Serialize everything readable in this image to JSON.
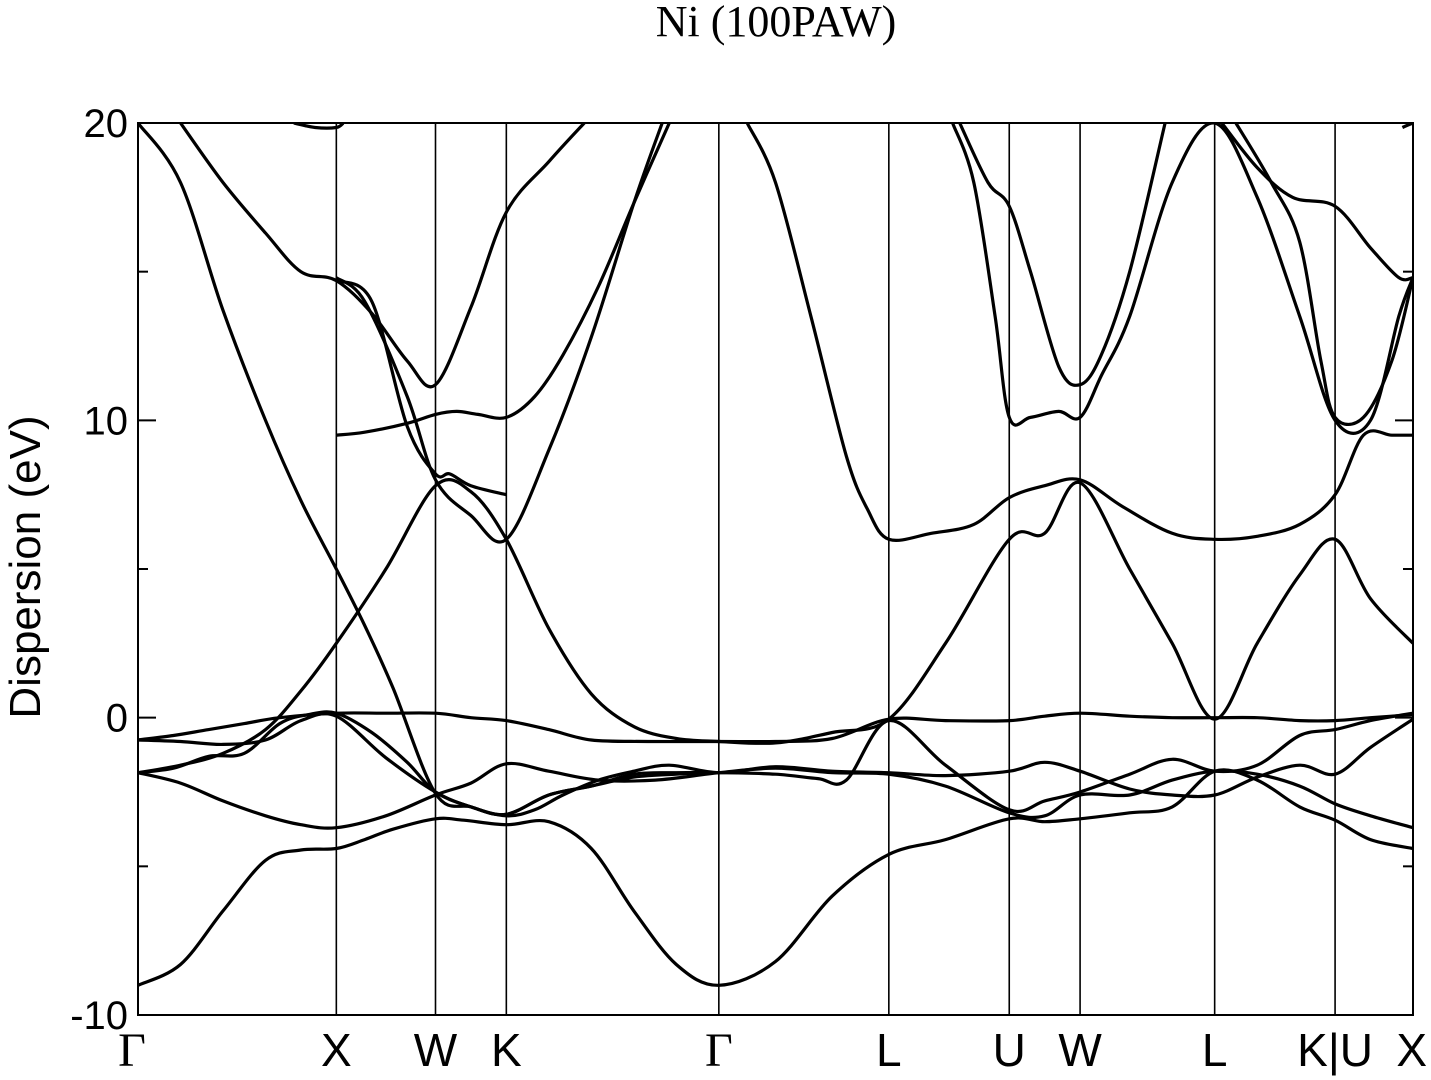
{
  "chart_data": {
    "type": "line",
    "title": "Ni (100PAW)",
    "ylabel": "Dispersion (eV)",
    "xlabel": "",
    "ylim": [
      -10,
      20
    ],
    "xlim": [
      0,
      18
    ],
    "yticks": [
      -10,
      0,
      10,
      20
    ],
    "yticks_minor": [
      -5,
      5,
      15
    ],
    "grid": false,
    "legend": "none",
    "line_color": "#000000",
    "kpoints": [
      {
        "label": "Γ",
        "x": 0
      },
      {
        "label": "X",
        "x": 2.8
      },
      {
        "label": "W",
        "x": 4.2
      },
      {
        "label": "K",
        "x": 5.2
      },
      {
        "label": "Γ",
        "x": 8.2
      },
      {
        "label": "L",
        "x": 10.6
      },
      {
        "label": "U",
        "x": 12.3
      },
      {
        "label": "W",
        "x": 13.3
      },
      {
        "label": "L",
        "x": 15.2
      },
      {
        "label": "K|U",
        "x": 16.9
      },
      {
        "label": "X",
        "x": 18
      }
    ],
    "series": [
      {
        "x": [
          0,
          0.6,
          1.2,
          1.8,
          2.3,
          2.8,
          3.2,
          3.6,
          4.2,
          4.6,
          5.2,
          5.8,
          6.4,
          7.0,
          7.6,
          8.2,
          9.0,
          9.8,
          10.6,
          11.4,
          12.3,
          12.8,
          13.3,
          14.0,
          14.6,
          15.2,
          15.8,
          16.4,
          16.9,
          17.4,
          18
        ],
        "y": [
          -9.0,
          -8.3,
          -6.5,
          -4.8,
          -4.45,
          -4.4,
          -4.1,
          -3.75,
          -3.4,
          -3.45,
          -3.6,
          -3.5,
          -4.4,
          -6.5,
          -8.3,
          -9.0,
          -8.2,
          -6.0,
          -4.6,
          -4.1,
          -3.4,
          -3.5,
          -3.4,
          -3.2,
          -3.0,
          -1.8,
          -2.1,
          -3.0,
          -3.45,
          -4.1,
          -4.4
        ]
      },
      {
        "x": [
          0,
          0.6,
          1.2,
          1.8,
          2.3,
          2.8,
          3.5,
          4.2,
          4.7,
          5.2,
          5.8,
          6.5,
          7.3,
          8.2,
          9.0,
          9.8,
          10.6,
          11.4,
          12.3,
          12.8,
          13.3,
          14.0,
          14.6,
          15.2,
          15.8,
          16.4,
          16.9,
          17.4,
          18
        ],
        "y": [
          -1.85,
          -2.2,
          -2.8,
          -3.3,
          -3.6,
          -3.7,
          -3.3,
          -2.6,
          -2.2,
          -1.55,
          -1.8,
          -2.1,
          -2.1,
          -1.85,
          -1.7,
          -1.85,
          -1.9,
          -2.3,
          -3.2,
          -3.3,
          -2.6,
          -2.6,
          -2.1,
          -1.8,
          -1.9,
          -2.3,
          -2.9,
          -3.3,
          -3.7
        ]
      },
      {
        "x": [
          0,
          0.6,
          1.2,
          1.8,
          2.3,
          2.8,
          3.5,
          4.2,
          4.7,
          5.2,
          5.8,
          6.4,
          7.0,
          7.6,
          8.2,
          9.0,
          9.6,
          10.0,
          10.6,
          11.4,
          12.3,
          12.8,
          13.3,
          14.0,
          14.6,
          15.2,
          15.8,
          16.4,
          16.9,
          17.4,
          18
        ],
        "y": [
          -0.75,
          -0.8,
          -0.9,
          -0.75,
          -0.1,
          0.05,
          -1.35,
          -2.5,
          -3.0,
          -3.25,
          -2.6,
          -2.3,
          -1.9,
          -1.85,
          -1.85,
          -1.9,
          -2.05,
          -2.1,
          -0.1,
          -1.6,
          -3.1,
          -2.8,
          -2.5,
          -1.9,
          -1.4,
          -1.8,
          -1.6,
          -0.6,
          -0.4,
          -0.1,
          0.15
        ]
      },
      {
        "x": [
          0,
          0.5,
          1.0,
          1.5,
          2.0,
          2.4,
          2.8,
          3.3,
          3.8,
          4.2,
          4.7,
          5.2,
          5.6,
          6.0,
          6.5,
          7.0,
          7.5,
          8.2,
          9.0,
          9.8,
          10.6,
          11.4,
          12.3,
          12.8,
          13.3,
          14.0,
          14.6,
          15.2,
          15.8,
          16.4,
          16.9,
          17.4,
          18
        ],
        "y": [
          -1.85,
          -1.7,
          -1.3,
          -1.2,
          -0.2,
          0.1,
          0.15,
          -0.5,
          -1.5,
          -2.5,
          -3.0,
          -3.3,
          -3.1,
          -2.6,
          -2.1,
          -1.8,
          -1.6,
          -1.85,
          -1.65,
          -1.8,
          -1.85,
          -1.95,
          -1.8,
          -1.5,
          -1.8,
          -2.4,
          -2.6,
          -2.6,
          -2.0,
          -1.6,
          -1.9,
          -1.0,
          -0.05
        ]
      },
      {
        "x": [
          0,
          0.5,
          1.0,
          1.5,
          2.0,
          2.8,
          3.5,
          4.2,
          4.7,
          5.2,
          5.8,
          6.4,
          7.2,
          8.2,
          9.0,
          9.8,
          10.6,
          11.4,
          12.3,
          12.8,
          13.3,
          14.0,
          14.6,
          15.2,
          15.8,
          16.4,
          16.9,
          17.4,
          18
        ],
        "y": [
          -0.75,
          -0.6,
          -0.4,
          -0.2,
          0.0,
          0.15,
          0.15,
          0.15,
          0.0,
          -0.1,
          -0.4,
          -0.75,
          -0.8,
          -0.8,
          -0.8,
          -0.7,
          -0.05,
          -0.1,
          -0.1,
          0.05,
          0.15,
          0.05,
          0.0,
          0.0,
          0.0,
          -0.1,
          -0.1,
          0.0,
          0.1
        ]
      },
      {
        "x": [
          0,
          0.6,
          1.2,
          1.8,
          2.3,
          2.8,
          3.5,
          4.2,
          4.7,
          5.2,
          5.8,
          6.4,
          7.0,
          7.6,
          8.2,
          9.0,
          9.8,
          10.6,
          11.4,
          12.3,
          12.8,
          13.3,
          14.0,
          14.6,
          15.2,
          15.8,
          16.4,
          16.9,
          17.4,
          18
        ],
        "y": [
          -1.85,
          -1.6,
          -1.2,
          -0.4,
          0.9,
          2.5,
          5.0,
          7.8,
          7.6,
          6.0,
          3.0,
          0.8,
          -0.3,
          -0.7,
          -0.8,
          -0.85,
          -0.5,
          -0.05,
          2.5,
          6.0,
          6.2,
          7.9,
          5.0,
          2.5,
          -0.05,
          2.5,
          4.8,
          6.0,
          4.0,
          2.5
        ]
      },
      {
        "x": [
          0,
          0.6,
          1.2,
          1.8,
          2.3,
          2.8,
          3.2,
          3.6,
          4.2,
          4.7,
          5.2,
          5.8,
          6.4,
          7.0,
          7.6,
          8.0
        ],
        "y": [
          20,
          18.0,
          13.7,
          10.0,
          7.3,
          5.0,
          3.1,
          1.0,
          -2.55,
          -3.0,
          -3.25,
          -2.6,
          -2.3,
          -2.0,
          -1.9,
          -1.85
        ]
      },
      {
        "x": [
          2.8,
          3.2,
          3.8,
          4.2,
          4.7,
          5.2,
          5.8,
          6.4,
          7.0,
          7.4
        ],
        "y": [
          14.8,
          14.0,
          10.8,
          8.0,
          6.8,
          6.0,
          9.0,
          12.8,
          17.3,
          20.0
        ]
      },
      {
        "x": [
          2.8,
          3.2,
          3.8,
          4.2,
          4.5,
          4.8,
          5.2,
          5.6,
          6.0,
          6.5,
          7.0,
          7.5
        ],
        "y": [
          9.5,
          9.6,
          9.9,
          10.2,
          10.3,
          10.2,
          10.1,
          10.8,
          12.2,
          14.5,
          17.3,
          20.0
        ]
      },
      {
        "x": [
          0.6,
          1.2,
          1.8,
          2.3,
          2.8,
          3.3,
          3.8,
          4.2,
          4.7,
          5.2,
          5.8,
          6.3
        ],
        "y": [
          20,
          18.0,
          16.3,
          15.0,
          14.7,
          13.6,
          12.0,
          11.2,
          13.8,
          17.0,
          18.7,
          20.0
        ]
      },
      {
        "x": [
          2.8,
          3.3,
          3.8,
          4.2,
          4.4,
          4.7,
          5.2
        ],
        "y": [
          14.7,
          14.0,
          9.8,
          8.2,
          8.2,
          7.8,
          7.5
        ]
      },
      {
        "x": [
          2.2,
          2.5,
          2.8,
          2.9
        ],
        "y": [
          20.0,
          19.85,
          19.85,
          20.0
        ]
      },
      {
        "x": [
          8.6,
          9.0,
          9.5,
          10.0,
          10.3,
          10.6,
          11.2,
          11.8,
          12.3,
          12.8,
          13.3,
          13.9,
          14.6,
          15.2,
          15.8,
          16.4,
          16.9,
          17.3,
          17.7,
          18
        ],
        "y": [
          20.0,
          18.0,
          13.5,
          8.8,
          7.0,
          6.0,
          6.2,
          6.5,
          7.4,
          7.8,
          8.0,
          7.1,
          6.2,
          6.0,
          6.1,
          6.5,
          7.5,
          9.5,
          9.5,
          9.5
        ]
      },
      {
        "x": [
          11.5,
          11.8,
          12.1,
          12.3,
          12.6,
          13.0,
          13.3,
          13.6,
          14.0,
          14.6,
          15.2,
          15.8,
          16.4,
          16.9,
          17.4,
          17.8,
          18
        ],
        "y": [
          20.0,
          18.0,
          13.5,
          10.1,
          10.1,
          10.3,
          10.1,
          11.5,
          13.5,
          18.0,
          20.0,
          17.5,
          13.5,
          10.0,
          10.0,
          13.5,
          14.8
        ]
      },
      {
        "x": [
          11.6,
          12.0,
          12.3,
          12.6,
          13.0,
          13.3,
          13.6,
          14.0,
          14.5
        ],
        "y": [
          20.0,
          18.0,
          17.2,
          15.0,
          11.8,
          11.2,
          12.2,
          15.0,
          20.0
        ]
      },
      {
        "x": [
          15.3,
          15.8,
          16.3,
          16.9,
          17.4,
          17.8,
          18
        ],
        "y": [
          20.0,
          18.5,
          17.5,
          17.2,
          15.8,
          14.8,
          14.8
        ]
      },
      {
        "x": [
          15.5,
          16.0,
          16.4,
          16.7,
          16.9,
          17.3,
          17.7,
          18
        ],
        "y": [
          20.0,
          18.0,
          16.0,
          12.0,
          10.1,
          10.1,
          12.0,
          14.8
        ]
      },
      {
        "x": [
          17.85,
          18
        ],
        "y": [
          19.85,
          20.0
        ]
      }
    ]
  }
}
